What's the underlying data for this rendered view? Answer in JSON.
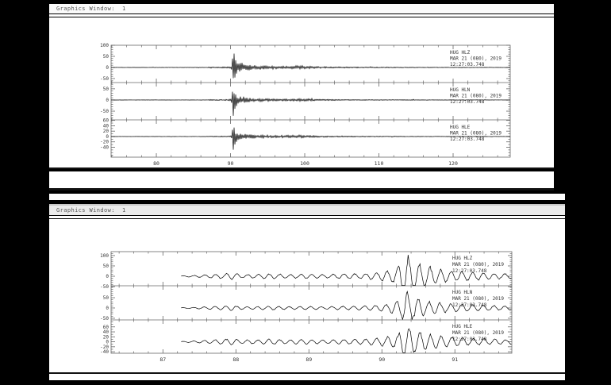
{
  "desktop": {
    "bg": "#000000"
  },
  "windows": [
    {
      "title": "Graphics Window:  1"
    },
    {
      "title": "Graphics Window:  1"
    }
  ],
  "chart_data": [
    {
      "type": "line",
      "subtype": "seismogram-3-component-overview",
      "title": "",
      "xlabel": "",
      "ylabel": "",
      "station": "HUG",
      "date_label": "MAR 21 (080), 2019",
      "time_label": "12:27:03.748",
      "xlim": [
        73.9,
        127.7
      ],
      "x_start": 73.9,
      "x_end": 127.7,
      "xticks": [
        80,
        90,
        100,
        110,
        120
      ],
      "xtick_minor_step": 2,
      "event_x": 90.3,
      "waveform_mode": "noise",
      "osc_freq": 0,
      "grid": false,
      "legend": "none",
      "traces": [
        {
          "channel": "HLZ",
          "label_lines": [
            "HUG  HLZ",
            "MAR 21 (080), 2019",
            "12:27:03.748"
          ],
          "ylim": [
            -68,
            100
          ],
          "yticks": [
            100,
            50,
            0,
            -50
          ],
          "ytick_minor_step": 10,
          "envelope": [
            [
              73.9,
              0.8
            ],
            [
              86.8,
              1.0
            ],
            [
              87.3,
              3.5
            ],
            [
              88.0,
              2.5
            ],
            [
              88.8,
              3.0
            ],
            [
              89.6,
              3.5
            ],
            [
              90.05,
              5
            ],
            [
              90.2,
              40
            ],
            [
              90.3,
              108
            ],
            [
              90.45,
              82
            ],
            [
              90.7,
              46
            ],
            [
              91.0,
              30
            ],
            [
              91.6,
              22
            ],
            [
              92.5,
              15
            ],
            [
              93.5,
              11
            ],
            [
              95,
              9
            ],
            [
              96.5,
              7
            ],
            [
              98,
              8
            ],
            [
              99.5,
              9
            ],
            [
              100.5,
              6
            ],
            [
              102,
              4.5
            ],
            [
              104,
              3.5
            ],
            [
              106,
              3
            ],
            [
              108,
              2.5
            ],
            [
              110,
              2.2
            ],
            [
              113,
              1.8
            ],
            [
              117,
              1.4
            ],
            [
              121,
              1.2
            ],
            [
              127.7,
              1.0
            ]
          ]
        },
        {
          "channel": "HLN",
          "label_lines": [
            "HUG  HLN",
            "MAR 21 (080), 2019",
            "12:27:03.748"
          ],
          "ylim": [
            -89,
            78
          ],
          "yticks": [
            50,
            0,
            -50
          ],
          "ytick_minor_step": 10,
          "envelope": [
            [
              73.9,
              0.7
            ],
            [
              86.8,
              0.9
            ],
            [
              87.3,
              2.5
            ],
            [
              88.0,
              2.0
            ],
            [
              88.8,
              2.2
            ],
            [
              89.6,
              2.8
            ],
            [
              90.05,
              4
            ],
            [
              90.2,
              30
            ],
            [
              90.3,
              84
            ],
            [
              90.45,
              58
            ],
            [
              90.7,
              33
            ],
            [
              91.0,
              22
            ],
            [
              91.6,
              16
            ],
            [
              92.5,
              11
            ],
            [
              93.5,
              8
            ],
            [
              95,
              6.5
            ],
            [
              96.5,
              5
            ],
            [
              98,
              6
            ],
            [
              99.5,
              6.5
            ],
            [
              100.5,
              4.5
            ],
            [
              102,
              3.5
            ],
            [
              104,
              2.8
            ],
            [
              106,
              2.3
            ],
            [
              108,
              2.0
            ],
            [
              110,
              1.8
            ],
            [
              113,
              1.5
            ],
            [
              117,
              1.2
            ],
            [
              121,
              1.0
            ],
            [
              127.7,
              0.9
            ]
          ]
        },
        {
          "channel": "HLE",
          "label_lines": [
            "HUG  HLE",
            "MAR 21 (080), 2019",
            "12:27:03.748"
          ],
          "ylim": [
            -77,
            62
          ],
          "yticks": [
            60,
            40,
            20,
            0,
            -20,
            -40
          ],
          "ytick_minor_step": 10,
          "envelope": [
            [
              73.9,
              0.6
            ],
            [
              86.8,
              0.8
            ],
            [
              87.3,
              2.2
            ],
            [
              88.0,
              1.8
            ],
            [
              88.8,
              2.0
            ],
            [
              89.6,
              2.5
            ],
            [
              90.05,
              3.5
            ],
            [
              90.2,
              26
            ],
            [
              90.3,
              70
            ],
            [
              90.45,
              50
            ],
            [
              90.7,
              28
            ],
            [
              91.0,
              19
            ],
            [
              91.6,
              14
            ],
            [
              92.5,
              9.5
            ],
            [
              93.5,
              7
            ],
            [
              95,
              5.5
            ],
            [
              96.5,
              4.5
            ],
            [
              98,
              5.5
            ],
            [
              99.5,
              6
            ],
            [
              100.5,
              4
            ],
            [
              102,
              3
            ],
            [
              104,
              2.5
            ],
            [
              106,
              2
            ],
            [
              108,
              1.8
            ],
            [
              110,
              1.6
            ],
            [
              113,
              1.3
            ],
            [
              117,
              1.1
            ],
            [
              121,
              0.9
            ],
            [
              127.7,
              0.8
            ]
          ]
        }
      ]
    },
    {
      "type": "line",
      "subtype": "seismogram-3-component-zoomed",
      "title": "",
      "xlabel": "",
      "ylabel": "",
      "station": "HUG",
      "date_label": "MAR 21 (080), 2019",
      "time_label": "12:27:03.748",
      "xlim": [
        86.29,
        91.78
      ],
      "x_start": 87.25,
      "x_end": 91.78,
      "xticks": [
        87,
        88,
        89,
        90,
        91
      ],
      "xtick_minor_step": 0.2,
      "event_x": 90.32,
      "waveform_mode": "oscillation",
      "osc_freq": 6.8,
      "grid": false,
      "legend": "none",
      "traces": [
        {
          "channel": "HLZ",
          "label_lines": [
            "HUG  HLZ",
            "MAR 21 (080), 2019",
            "12:27:03.748"
          ],
          "ylim": [
            -46,
            119
          ],
          "yticks": [
            100,
            50,
            0,
            -50
          ],
          "ytick_minor_step": 10,
          "envelope": [
            [
              87.25,
              2
            ],
            [
              87.5,
              5
            ],
            [
              87.75,
              10
            ],
            [
              87.95,
              14
            ],
            [
              88.1,
              8
            ],
            [
              88.3,
              9
            ],
            [
              88.5,
              12
            ],
            [
              88.7,
              8
            ],
            [
              88.95,
              10
            ],
            [
              89.2,
              8
            ],
            [
              89.45,
              11
            ],
            [
              89.7,
              12
            ],
            [
              89.9,
              16
            ],
            [
              90.1,
              24
            ],
            [
              90.22,
              45
            ],
            [
              90.32,
              100
            ],
            [
              90.45,
              70
            ],
            [
              90.6,
              45
            ],
            [
              90.8,
              30
            ],
            [
              91.0,
              24
            ],
            [
              91.3,
              18
            ],
            [
              91.6,
              13
            ],
            [
              91.78,
              11
            ]
          ]
        },
        {
          "channel": "HLN",
          "label_lines": [
            "HUG  HLN",
            "MAR 21 (080), 2019",
            "12:27:03.748"
          ],
          "ylim": [
            -58,
            108
          ],
          "yticks": [
            50,
            0,
            -50
          ],
          "ytick_minor_step": 10,
          "envelope": [
            [
              87.25,
              1.5
            ],
            [
              87.5,
              4
            ],
            [
              87.75,
              8
            ],
            [
              87.95,
              11
            ],
            [
              88.1,
              6
            ],
            [
              88.3,
              7
            ],
            [
              88.5,
              9
            ],
            [
              88.7,
              6
            ],
            [
              88.95,
              8
            ],
            [
              89.2,
              6
            ],
            [
              89.45,
              8
            ],
            [
              89.7,
              9
            ],
            [
              89.9,
              12
            ],
            [
              90.1,
              18
            ],
            [
              90.22,
              34
            ],
            [
              90.32,
              76
            ],
            [
              90.45,
              52
            ],
            [
              90.6,
              34
            ],
            [
              90.8,
              23
            ],
            [
              91.0,
              18
            ],
            [
              91.3,
              14
            ],
            [
              91.6,
              10
            ],
            [
              91.78,
              8
            ]
          ]
        },
        {
          "channel": "HLE",
          "label_lines": [
            "HUG  HLE",
            "MAR 21 (080), 2019",
            "12:27:03.748"
          ],
          "ylim": [
            -46,
            88
          ],
          "yticks": [
            60,
            40,
            20,
            0,
            -20,
            -40
          ],
          "ytick_minor_step": 10,
          "envelope": [
            [
              87.25,
              1.5
            ],
            [
              87.5,
              4
            ],
            [
              87.75,
              9
            ],
            [
              87.95,
              12
            ],
            [
              88.1,
              7
            ],
            [
              88.3,
              8
            ],
            [
              88.5,
              10
            ],
            [
              88.7,
              7
            ],
            [
              88.95,
              9
            ],
            [
              89.2,
              7
            ],
            [
              89.45,
              9
            ],
            [
              89.7,
              10
            ],
            [
              89.9,
              13
            ],
            [
              90.1,
              19
            ],
            [
              90.22,
              30
            ],
            [
              90.32,
              58
            ],
            [
              90.45,
              45
            ],
            [
              90.6,
              32
            ],
            [
              90.8,
              22
            ],
            [
              91.0,
              17
            ],
            [
              91.3,
              13
            ],
            [
              91.6,
              10
            ],
            [
              91.78,
              8
            ]
          ]
        }
      ]
    }
  ]
}
